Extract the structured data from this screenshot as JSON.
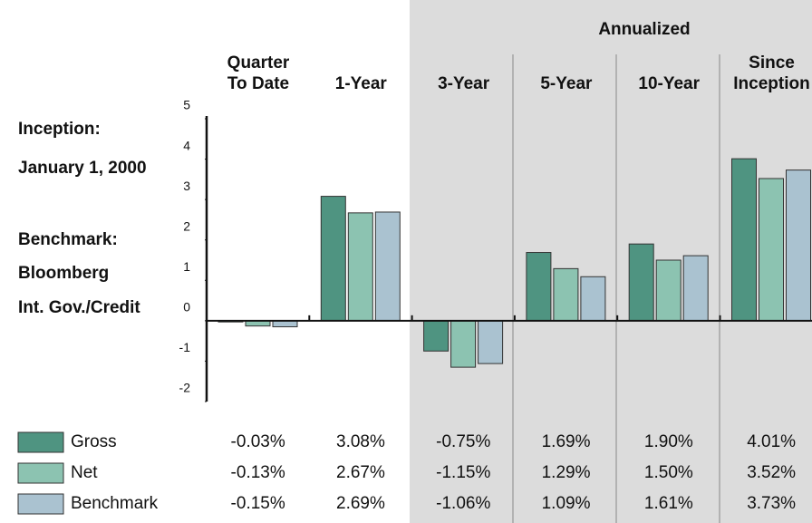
{
  "chart_data": {
    "type": "bar",
    "header": "Annualized",
    "annotations": [
      "Inception:",
      "January 1, 2000",
      "Benchmark:",
      "Bloomberg",
      "Int. Gov./Credit"
    ],
    "categories": [
      "Quarter\nTo Date",
      "1-Year",
      "3-Year",
      "5-Year",
      "10-Year",
      "Since\nInception"
    ],
    "series": [
      {
        "name": "Gross",
        "color": "#4f9481",
        "values": [
          -0.03,
          3.08,
          -0.75,
          1.69,
          1.9,
          4.01
        ],
        "value_labels": [
          "-0.03%",
          "3.08%",
          "-0.75%",
          "1.69%",
          "1.90%",
          "4.01%"
        ]
      },
      {
        "name": "Net",
        "color": "#8cc3b1",
        "values": [
          -0.13,
          2.67,
          -1.15,
          1.29,
          1.5,
          3.52
        ],
        "value_labels": [
          "-0.13%",
          "2.67%",
          "-1.15%",
          "1.29%",
          "1.50%",
          "3.52%"
        ]
      },
      {
        "name": "Benchmark",
        "color": "#aac2d0",
        "values": [
          -0.15,
          2.69,
          -1.06,
          1.09,
          1.61,
          3.73
        ],
        "value_labels": [
          "-0.15%",
          "2.69%",
          "-1.06%",
          "1.09%",
          "1.61%",
          "3.73%"
        ]
      }
    ],
    "ylim": [
      -2,
      5
    ],
    "yticks": [
      -2,
      -1,
      0,
      1,
      2,
      3,
      4,
      5
    ]
  }
}
